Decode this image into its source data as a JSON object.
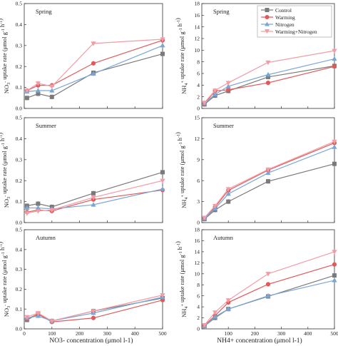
{
  "figure": {
    "xlabel_left": "NO3- concentration (μmol l-1)",
    "xlabel_right": "NH4+ concentration (μmol l-1)"
  },
  "legend": {
    "entries": [
      "Control",
      "Warming",
      "Nitrogen",
      "Warming+Nitrogen"
    ]
  },
  "styles": {
    "colors": {
      "Control": "#7a7a7a",
      "Warming": "#e05a5a",
      "Nitrogen": "#7aa6d6",
      "Warming+Nitrogen": "#f29ca6"
    },
    "markers": {
      "Control": "square",
      "Warming": "circle",
      "Nitrogen": "triangle-up",
      "Warming+Nitrogen": "triangle-down"
    }
  },
  "chart_data": [
    {
      "panel": "no3-spring",
      "type": "line",
      "season": "Spring",
      "ylabel": "NO3- uptake rate (μmol g-1 h-1)",
      "x": [
        10,
        50,
        100,
        250,
        500
      ],
      "xlim": [
        0,
        500
      ],
      "xticks": [
        0,
        100,
        200,
        300,
        400,
        500
      ],
      "ylim": [
        0,
        0.5
      ],
      "yticks": [
        0.0,
        0.1,
        0.2,
        0.3,
        0.4,
        0.5
      ],
      "yticklabels": [
        "0.0",
        "0.1",
        "0.2",
        "0.3",
        "0.4",
        "0.5"
      ],
      "series": [
        {
          "name": "Control",
          "values": [
            0.05,
            0.07,
            0.055,
            0.17,
            0.26
          ]
        },
        {
          "name": "Warming",
          "values": [
            0.085,
            0.11,
            0.11,
            0.215,
            0.325
          ]
        },
        {
          "name": "Nitrogen",
          "values": [
            0.08,
            0.085,
            0.085,
            0.165,
            0.3
          ]
        },
        {
          "name": "Warming+Nitrogen",
          "values": [
            0.085,
            0.12,
            0.105,
            0.31,
            0.33
          ]
        }
      ]
    },
    {
      "panel": "nh4-spring",
      "type": "line",
      "season": "Spring",
      "ylabel": "NH4+ uptake rate (μmol g-1 h-1)",
      "x": [
        10,
        50,
        100,
        250,
        500
      ],
      "xlim": [
        0,
        500
      ],
      "xticks": [
        100,
        200,
        300,
        400,
        500
      ],
      "ylim": [
        0,
        18
      ],
      "yticks": [
        0,
        2,
        4,
        6,
        8,
        10,
        12,
        14,
        16,
        18
      ],
      "yticklabels": [
        "0",
        "2",
        "4",
        "6",
        "8",
        "10",
        "12",
        "14",
        "16",
        "18"
      ],
      "series": [
        {
          "name": "Control",
          "values": [
            0.7,
            2.2,
            3.0,
            5.4,
            7.3
          ]
        },
        {
          "name": "Warming",
          "values": [
            0.8,
            3.0,
            3.2,
            4.4,
            7.2
          ]
        },
        {
          "name": "Nitrogen",
          "values": [
            0.9,
            2.4,
            3.8,
            5.8,
            8.5
          ]
        },
        {
          "name": "Warming+Nitrogen",
          "values": [
            1.0,
            3.1,
            4.4,
            7.9,
            9.9
          ]
        }
      ]
    },
    {
      "panel": "no3-summer",
      "type": "line",
      "season": "Summer",
      "ylabel": "NO3- uptake rate (μmol g-1 h-1)",
      "x": [
        10,
        50,
        100,
        250,
        500
      ],
      "xlim": [
        0,
        500
      ],
      "xticks": [
        0,
        100,
        200,
        300,
        400,
        500
      ],
      "ylim": [
        0,
        0.5
      ],
      "yticks": [
        0.0,
        0.1,
        0.2,
        0.3,
        0.4,
        0.5
      ],
      "yticklabels": [
        "0.0",
        "0.1",
        "0.2",
        "0.3",
        "0.4",
        "0.5"
      ],
      "series": [
        {
          "name": "Control",
          "values": [
            0.08,
            0.09,
            0.075,
            0.14,
            0.24
          ]
        },
        {
          "name": "Warming",
          "values": [
            0.05,
            0.06,
            0.055,
            0.11,
            0.155
          ]
        },
        {
          "name": "Nitrogen",
          "values": [
            0.07,
            0.07,
            0.065,
            0.085,
            0.16
          ]
        },
        {
          "name": "Warming+Nitrogen",
          "values": [
            0.045,
            0.055,
            0.06,
            0.12,
            0.2
          ]
        }
      ]
    },
    {
      "panel": "nh4-summer",
      "type": "line",
      "season": "Summer",
      "ylabel": "NH4+ uptake rate (μmol g-1 h-1)",
      "x": [
        10,
        50,
        100,
        250,
        500
      ],
      "xlim": [
        0,
        500
      ],
      "xticks": [
        100,
        200,
        300,
        400,
        500
      ],
      "ylim": [
        0,
        15
      ],
      "yticks": [
        0,
        3,
        6,
        9,
        12,
        15
      ],
      "yticklabels": [
        "0",
        "3",
        "6",
        "9",
        "12",
        "15"
      ],
      "series": [
        {
          "name": "Control",
          "values": [
            0.5,
            1.8,
            3.0,
            5.9,
            8.4
          ]
        },
        {
          "name": "Warming",
          "values": [
            0.6,
            2.2,
            4.6,
            7.5,
            11.4
          ]
        },
        {
          "name": "Nitrogen",
          "values": [
            0.6,
            2.0,
            4.1,
            7.1,
            10.8
          ]
        },
        {
          "name": "Warming+Nitrogen",
          "values": [
            0.7,
            2.4,
            4.8,
            7.6,
            11.6
          ]
        }
      ]
    },
    {
      "panel": "no3-autumn",
      "type": "line",
      "season": "Autumn",
      "ylabel": "NO3- uptake rate (μmol g-1 h-1)",
      "x": [
        10,
        50,
        100,
        250,
        500
      ],
      "xlim": [
        0,
        500
      ],
      "xticks": [
        0,
        100,
        200,
        300,
        400,
        500
      ],
      "xticklabels": [
        "0",
        "100",
        "200",
        "300",
        "400",
        "500"
      ],
      "ylim": [
        0,
        0.5
      ],
      "yticks": [
        0.0,
        0.1,
        0.2,
        0.3,
        0.4,
        0.5
      ],
      "yticklabels": [
        "0.0",
        "0.1",
        "0.2",
        "0.3",
        "0.4",
        "0.5"
      ],
      "series": [
        {
          "name": "Control",
          "values": [
            0.045,
            0.075,
            0.04,
            0.09,
            0.155
          ]
        },
        {
          "name": "Warming",
          "values": [
            0.05,
            0.075,
            0.035,
            0.055,
            0.145
          ]
        },
        {
          "name": "Nitrogen",
          "values": [
            0.055,
            0.065,
            0.04,
            0.08,
            0.16
          ]
        },
        {
          "name": "Warming+Nitrogen",
          "values": [
            0.06,
            0.08,
            0.04,
            0.09,
            0.17
          ]
        }
      ]
    },
    {
      "panel": "nh4-autumn",
      "type": "line",
      "season": "Autumn",
      "ylabel": "NH4+ uptake rate (μmol g-1 h-1)",
      "x": [
        10,
        50,
        100,
        250,
        500
      ],
      "xlim": [
        0,
        500
      ],
      "xticks": [
        100,
        200,
        300,
        400,
        500
      ],
      "xticklabels": [
        "100",
        "200",
        "300",
        "400",
        "500"
      ],
      "ylim": [
        0,
        18
      ],
      "yticks": [
        0,
        2,
        4,
        6,
        8,
        10,
        12,
        14,
        16,
        18
      ],
      "yticklabels": [
        "0",
        "2",
        "4",
        "6",
        "8",
        "10",
        "12",
        "14",
        "16",
        "18"
      ],
      "series": [
        {
          "name": "Control",
          "values": [
            0.5,
            2.0,
            3.6,
            5.9,
            9.7
          ]
        },
        {
          "name": "Warming",
          "values": [
            0.6,
            2.4,
            4.8,
            8.1,
            11.7
          ]
        },
        {
          "name": "Nitrogen",
          "values": [
            0.5,
            2.2,
            3.6,
            6.0,
            8.8
          ]
        },
        {
          "name": "Warming+Nitrogen",
          "values": [
            0.7,
            3.0,
            5.2,
            10.0,
            14.0
          ]
        }
      ]
    }
  ]
}
